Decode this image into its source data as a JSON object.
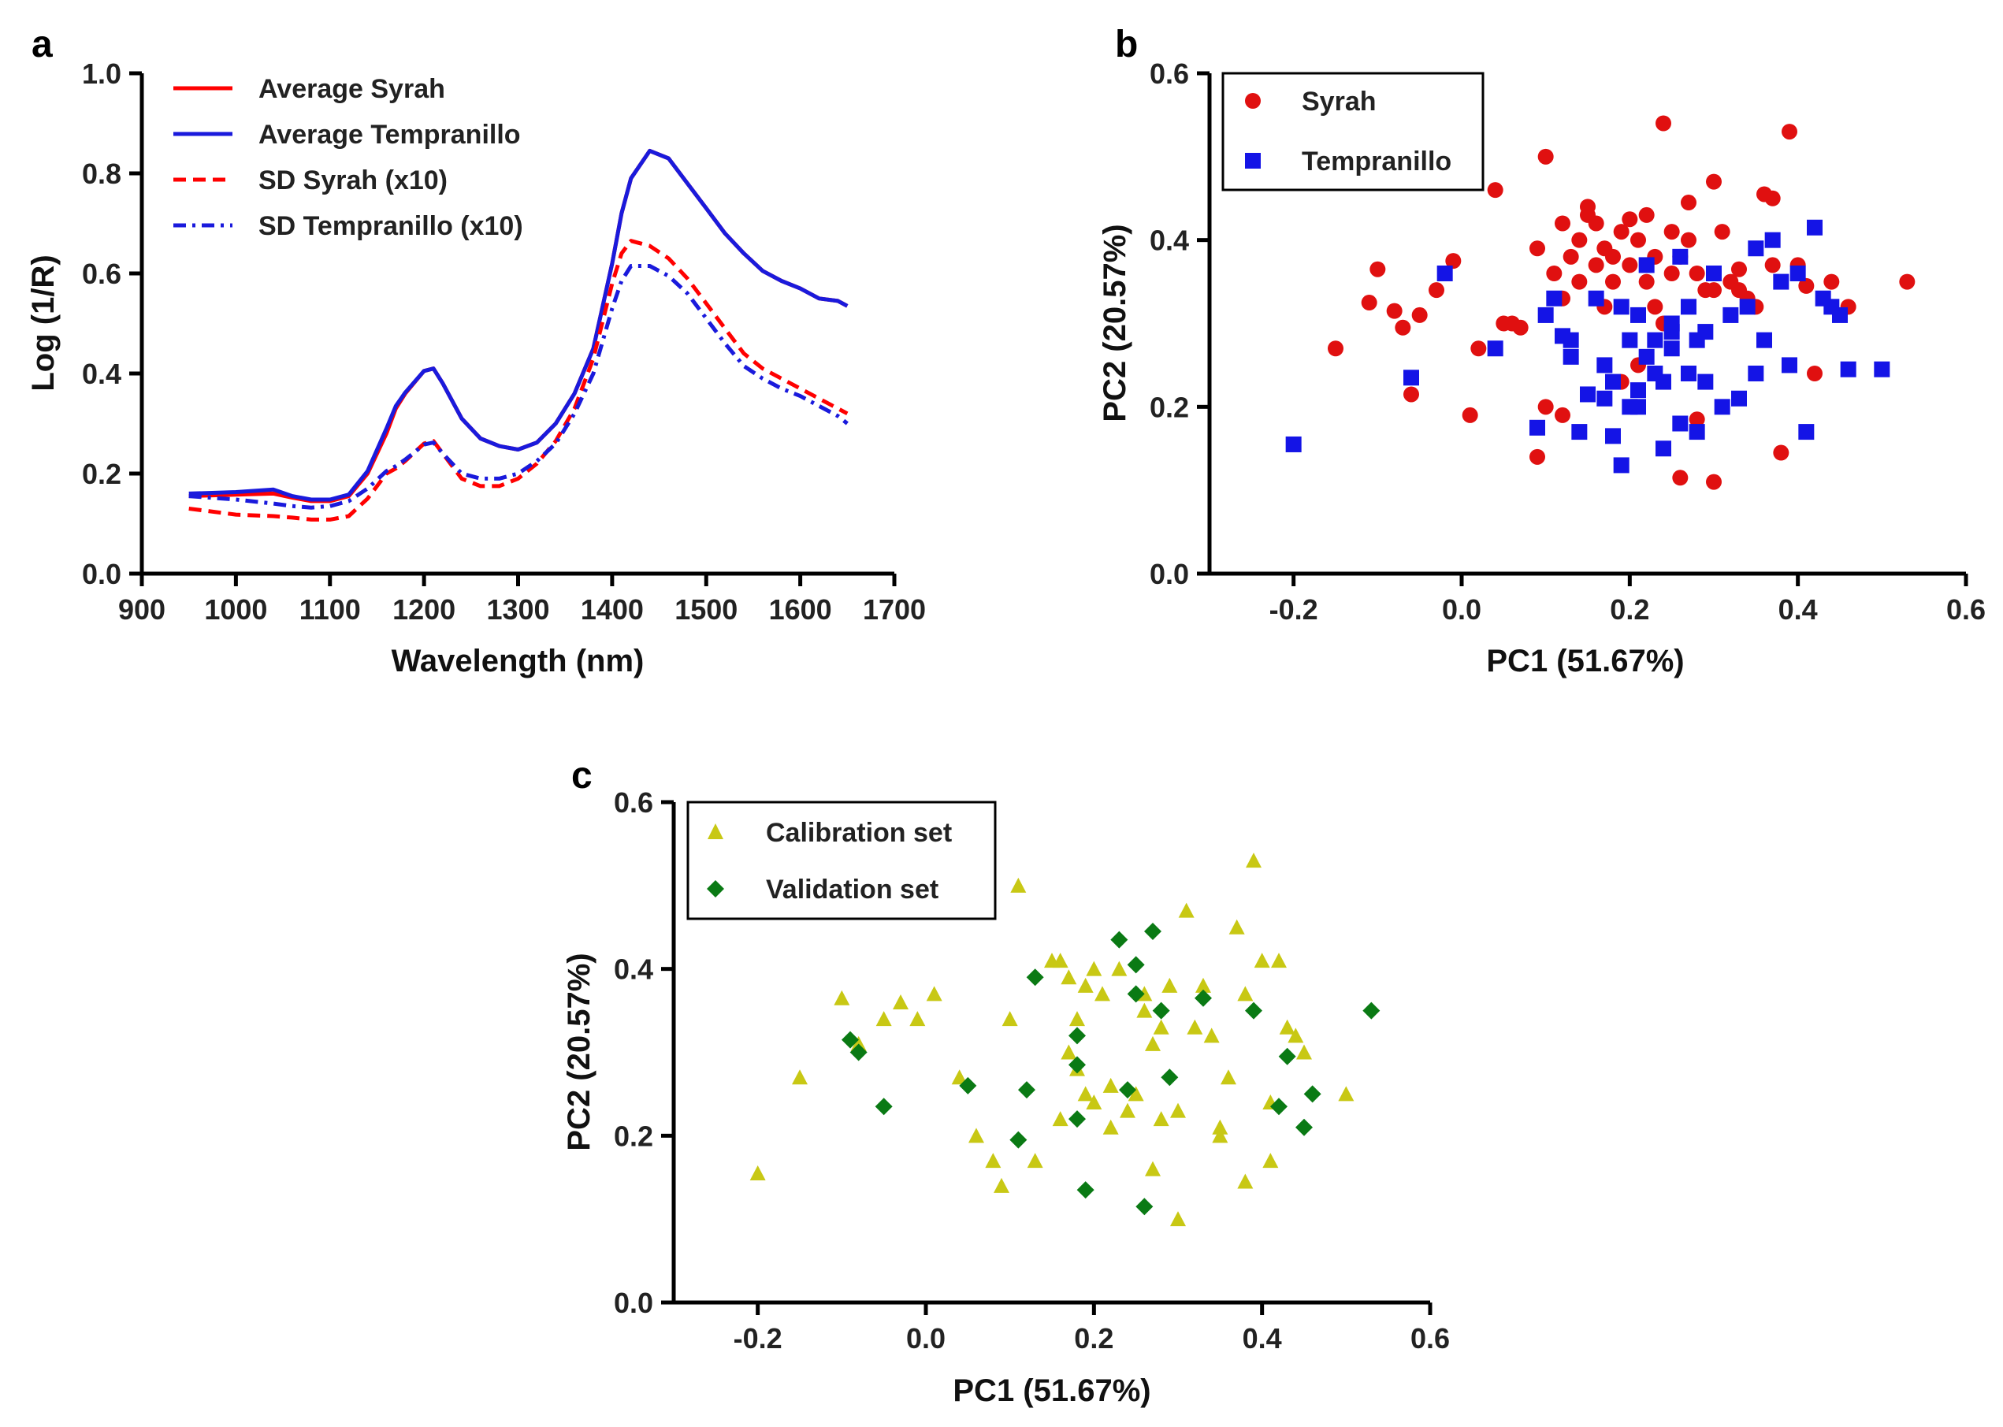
{
  "chart_data": [
    {
      "id": "a",
      "panel_label": "a",
      "type": "line",
      "title": "",
      "xlabel": "Wavelength (nm)",
      "ylabel": "Log (1/R)",
      "xlim": [
        900,
        1700
      ],
      "ylim": [
        0.0,
        1.0
      ],
      "xticks": [
        900,
        1000,
        1100,
        1200,
        1300,
        1400,
        1500,
        1600,
        1700
      ],
      "xtick_labels": [
        "900",
        "1000",
        "1100",
        "1200",
        "1300",
        "1400",
        "1500",
        "1600",
        "1700"
      ],
      "yticks": [
        0.0,
        0.2,
        0.4,
        0.6,
        0.8,
        1.0
      ],
      "ytick_labels": [
        "0.0",
        "0.2",
        "0.4",
        "0.6",
        "0.8",
        "1.0"
      ],
      "legend_position": "top-left",
      "x": [
        950,
        1000,
        1040,
        1060,
        1080,
        1100,
        1120,
        1140,
        1160,
        1170,
        1180,
        1200,
        1210,
        1220,
        1240,
        1260,
        1280,
        1300,
        1320,
        1340,
        1360,
        1380,
        1400,
        1410,
        1420,
        1440,
        1460,
        1480,
        1500,
        1520,
        1540,
        1560,
        1580,
        1600,
        1620,
        1640,
        1650
      ],
      "series": [
        {
          "name": "Average Syrah",
          "color": "#ff0000",
          "dash": "solid",
          "values": [
            0.155,
            0.158,
            0.16,
            0.152,
            0.145,
            0.145,
            0.155,
            0.2,
            0.28,
            0.33,
            0.36,
            0.405,
            0.41,
            0.38,
            0.31,
            0.27,
            0.255,
            0.248,
            0.262,
            0.3,
            0.36,
            0.45,
            0.62,
            0.72,
            0.79,
            0.845,
            0.83,
            0.78,
            0.73,
            0.68,
            0.64,
            0.605,
            0.585,
            0.57,
            0.55,
            0.545,
            0.535
          ]
        },
        {
          "name": "Average Tempranillo",
          "color": "#1a1adc",
          "dash": "solid",
          "values": [
            0.16,
            0.163,
            0.168,
            0.155,
            0.148,
            0.148,
            0.158,
            0.205,
            0.29,
            0.335,
            0.362,
            0.405,
            0.41,
            0.38,
            0.31,
            0.27,
            0.255,
            0.248,
            0.262,
            0.3,
            0.36,
            0.45,
            0.62,
            0.72,
            0.79,
            0.845,
            0.83,
            0.78,
            0.73,
            0.68,
            0.64,
            0.605,
            0.585,
            0.57,
            0.55,
            0.545,
            0.535
          ]
        },
        {
          "name": "SD Syrah (x10)",
          "color": "#ff0000",
          "dash": "dashed",
          "values": [
            0.13,
            0.118,
            0.115,
            0.112,
            0.108,
            0.108,
            0.115,
            0.15,
            0.2,
            0.21,
            0.225,
            0.26,
            0.265,
            0.24,
            0.19,
            0.175,
            0.175,
            0.19,
            0.22,
            0.265,
            0.33,
            0.43,
            0.58,
            0.64,
            0.665,
            0.655,
            0.63,
            0.59,
            0.54,
            0.49,
            0.44,
            0.41,
            0.39,
            0.37,
            0.35,
            0.33,
            0.32
          ]
        },
        {
          "name": "SD Tempranillo (x10)",
          "color": "#1a1adc",
          "dash": "dashdot",
          "values": [
            0.155,
            0.148,
            0.14,
            0.135,
            0.132,
            0.135,
            0.145,
            0.17,
            0.205,
            0.215,
            0.228,
            0.258,
            0.262,
            0.24,
            0.2,
            0.19,
            0.19,
            0.2,
            0.225,
            0.26,
            0.32,
            0.4,
            0.53,
            0.585,
            0.615,
            0.615,
            0.595,
            0.56,
            0.51,
            0.46,
            0.415,
            0.39,
            0.37,
            0.355,
            0.335,
            0.315,
            0.3
          ]
        }
      ]
    },
    {
      "id": "b",
      "panel_label": "b",
      "type": "scatter",
      "title": "",
      "xlabel": "PC1 (51.67%)",
      "ylabel": "PC2 (20.57%)",
      "xlim": [
        -0.3,
        0.6
      ],
      "ylim": [
        0.0,
        0.6
      ],
      "xticks": [
        -0.2,
        0.0,
        0.2,
        0.4,
        0.6
      ],
      "xtick_labels": [
        "-0.2",
        "0.0",
        "0.2",
        "0.4",
        "0.6"
      ],
      "yticks": [
        0.0,
        0.2,
        0.4,
        0.6
      ],
      "ytick_labels": [
        "0.0",
        "0.2",
        "0.4",
        "0.6"
      ],
      "legend_position": "top-left",
      "series": [
        {
          "name": "Syrah",
          "color": "#e01010",
          "marker": "circle",
          "x": [
            -0.15,
            -0.11,
            -0.1,
            -0.08,
            -0.07,
            -0.06,
            -0.05,
            -0.03,
            -0.01,
            0.01,
            0.02,
            0.04,
            0.05,
            0.06,
            0.07,
            0.09,
            0.1,
            0.11,
            0.12,
            0.12,
            0.13,
            0.14,
            0.14,
            0.15,
            0.16,
            0.16,
            0.17,
            0.17,
            0.18,
            0.19,
            0.2,
            0.21,
            0.22,
            0.22,
            0.23,
            0.24,
            0.25,
            0.25,
            0.26,
            0.27,
            0.28,
            0.29,
            0.3,
            0.3,
            0.31,
            0.32,
            0.33,
            0.34,
            0.35,
            0.36,
            0.37,
            0.38,
            0.39,
            0.4,
            0.41,
            0.42,
            0.44,
            0.46,
            0.53,
            0.09,
            0.15,
            0.19,
            0.23,
            0.26,
            0.27,
            0.3,
            0.33,
            0.37,
            0.12,
            0.18,
            0.21,
            0.24,
            0.28,
            0.1,
            0.2
          ],
          "y": [
            0.27,
            0.325,
            0.365,
            0.315,
            0.295,
            0.215,
            0.31,
            0.34,
            0.375,
            0.19,
            0.27,
            0.46,
            0.3,
            0.3,
            0.295,
            0.39,
            0.5,
            0.36,
            0.42,
            0.19,
            0.38,
            0.35,
            0.4,
            0.44,
            0.37,
            0.42,
            0.32,
            0.39,
            0.35,
            0.41,
            0.425,
            0.4,
            0.43,
            0.35,
            0.38,
            0.54,
            0.41,
            0.36,
            0.38,
            0.445,
            0.36,
            0.34,
            0.47,
            0.11,
            0.41,
            0.35,
            0.365,
            0.33,
            0.32,
            0.455,
            0.37,
            0.145,
            0.53,
            0.37,
            0.345,
            0.24,
            0.35,
            0.32,
            0.35,
            0.14,
            0.43,
            0.23,
            0.32,
            0.115,
            0.4,
            0.34,
            0.34,
            0.45,
            0.33,
            0.38,
            0.25,
            0.3,
            0.185,
            0.2,
            0.37
          ]
        },
        {
          "name": "Tempranillo",
          "color": "#1414e6",
          "marker": "square",
          "x": [
            -0.2,
            -0.06,
            -0.02,
            0.04,
            0.09,
            0.1,
            0.11,
            0.12,
            0.13,
            0.14,
            0.15,
            0.16,
            0.17,
            0.18,
            0.18,
            0.19,
            0.19,
            0.2,
            0.2,
            0.21,
            0.21,
            0.22,
            0.22,
            0.23,
            0.23,
            0.24,
            0.24,
            0.25,
            0.25,
            0.26,
            0.26,
            0.27,
            0.27,
            0.28,
            0.28,
            0.29,
            0.3,
            0.31,
            0.32,
            0.33,
            0.34,
            0.35,
            0.36,
            0.37,
            0.38,
            0.39,
            0.4,
            0.41,
            0.42,
            0.43,
            0.44,
            0.45,
            0.46,
            0.5,
            0.13,
            0.17,
            0.21,
            0.25,
            0.29,
            0.35
          ],
          "y": [
            0.155,
            0.235,
            0.36,
            0.27,
            0.175,
            0.31,
            0.33,
            0.285,
            0.28,
            0.17,
            0.215,
            0.33,
            0.25,
            0.23,
            0.165,
            0.13,
            0.32,
            0.2,
            0.28,
            0.22,
            0.31,
            0.37,
            0.26,
            0.24,
            0.28,
            0.15,
            0.23,
            0.29,
            0.3,
            0.18,
            0.38,
            0.24,
            0.32,
            0.17,
            0.28,
            0.29,
            0.36,
            0.2,
            0.31,
            0.21,
            0.32,
            0.24,
            0.28,
            0.4,
            0.35,
            0.25,
            0.36,
            0.17,
            0.415,
            0.33,
            0.32,
            0.31,
            0.245,
            0.245,
            0.26,
            0.21,
            0.2,
            0.27,
            0.23,
            0.39
          ]
        }
      ]
    },
    {
      "id": "c",
      "panel_label": "c",
      "type": "scatter",
      "title": "",
      "xlabel": "PC1 (51.67%)",
      "ylabel": "PC2 (20.57%)",
      "xlim": [
        -0.3,
        0.6
      ],
      "ylim": [
        0.0,
        0.6
      ],
      "xticks": [
        -0.2,
        0.0,
        0.2,
        0.4,
        0.6
      ],
      "xtick_labels": [
        "-0.2",
        "0.0",
        "0.2",
        "0.4",
        "0.6"
      ],
      "yticks": [
        0.0,
        0.2,
        0.4,
        0.6
      ],
      "ytick_labels": [
        "0.0",
        "0.2",
        "0.4",
        "0.6"
      ],
      "legend_position": "top-left",
      "series": [
        {
          "name": "Calibration set",
          "color": "#c8c814",
          "marker": "triangle",
          "x": [
            -0.2,
            -0.15,
            -0.1,
            -0.08,
            -0.05,
            -0.03,
            -0.01,
            0.01,
            0.04,
            0.06,
            0.08,
            0.09,
            0.1,
            0.11,
            0.13,
            0.15,
            0.16,
            0.16,
            0.17,
            0.17,
            0.18,
            0.19,
            0.19,
            0.2,
            0.21,
            0.22,
            0.23,
            0.24,
            0.25,
            0.26,
            0.27,
            0.27,
            0.28,
            0.28,
            0.29,
            0.3,
            0.31,
            0.32,
            0.33,
            0.34,
            0.35,
            0.36,
            0.37,
            0.38,
            0.39,
            0.4,
            0.41,
            0.42,
            0.43,
            0.44,
            0.45,
            0.5,
            0.38,
            0.26,
            0.18,
            0.22,
            0.3,
            0.35,
            0.41,
            0.2
          ],
          "y": [
            0.155,
            0.27,
            0.365,
            0.31,
            0.34,
            0.36,
            0.34,
            0.37,
            0.27,
            0.2,
            0.17,
            0.14,
            0.34,
            0.5,
            0.17,
            0.41,
            0.41,
            0.22,
            0.39,
            0.3,
            0.34,
            0.25,
            0.38,
            0.24,
            0.37,
            0.21,
            0.4,
            0.23,
            0.25,
            0.37,
            0.31,
            0.16,
            0.33,
            0.22,
            0.38,
            0.23,
            0.47,
            0.33,
            0.38,
            0.32,
            0.2,
            0.27,
            0.45,
            0.37,
            0.53,
            0.41,
            0.17,
            0.41,
            0.33,
            0.32,
            0.3,
            0.25,
            0.145,
            0.35,
            0.28,
            0.26,
            0.1,
            0.21,
            0.24,
            0.4
          ]
        },
        {
          "name": "Validation set",
          "color": "#0a7a14",
          "marker": "diamond",
          "x": [
            -0.09,
            -0.08,
            -0.05,
            0.05,
            0.11,
            0.12,
            0.13,
            0.18,
            0.18,
            0.18,
            0.19,
            0.23,
            0.24,
            0.25,
            0.25,
            0.26,
            0.27,
            0.28,
            0.29,
            0.33,
            0.39,
            0.42,
            0.43,
            0.45,
            0.46,
            0.53
          ],
          "y": [
            0.315,
            0.3,
            0.235,
            0.26,
            0.195,
            0.255,
            0.39,
            0.32,
            0.285,
            0.22,
            0.135,
            0.435,
            0.255,
            0.405,
            0.37,
            0.115,
            0.445,
            0.35,
            0.27,
            0.365,
            0.35,
            0.235,
            0.295,
            0.21,
            0.25,
            0.35
          ]
        }
      ]
    }
  ]
}
